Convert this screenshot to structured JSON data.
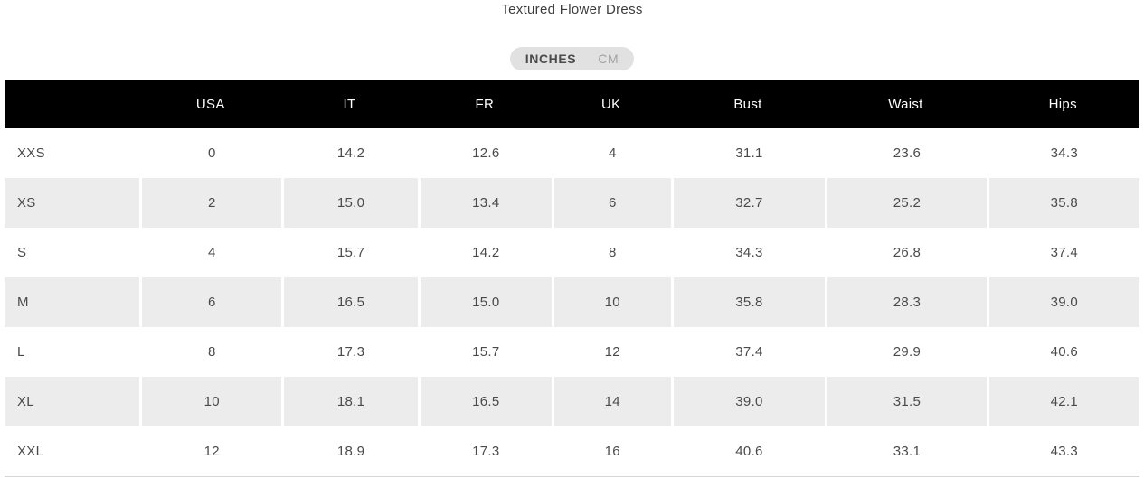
{
  "header": {
    "title": "Textured Flower Dress"
  },
  "unit_toggle": {
    "inches_label": "INCHES",
    "cm_label": "CM",
    "selected": "INCHES"
  },
  "size_table": {
    "columns": [
      "",
      "USA",
      "IT",
      "FR",
      "UK",
      "Bust",
      "Waist",
      "Hips"
    ],
    "rows": [
      [
        "XXS",
        "0",
        "14.2",
        "12.6",
        "4",
        "31.1",
        "23.6",
        "34.3"
      ],
      [
        "XS",
        "2",
        "15.0",
        "13.4",
        "6",
        "32.7",
        "25.2",
        "35.8"
      ],
      [
        "S",
        "4",
        "15.7",
        "14.2",
        "8",
        "34.3",
        "26.8",
        "37.4"
      ],
      [
        "M",
        "6",
        "16.5",
        "15.0",
        "10",
        "35.8",
        "28.3",
        "39.0"
      ],
      [
        "L",
        "8",
        "17.3",
        "15.7",
        "12",
        "37.4",
        "29.9",
        "40.6"
      ],
      [
        "XL",
        "10",
        "18.1",
        "16.5",
        "14",
        "39.0",
        "31.5",
        "42.1"
      ],
      [
        "XXL",
        "12",
        "18.9",
        "17.3",
        "16",
        "40.6",
        "33.1",
        "43.3"
      ]
    ]
  },
  "colors": {
    "header_bg": "#000000",
    "header_text": "#ffffff",
    "stripe_bg": "#ececec",
    "body_text": "#4a4a4a",
    "toggle_bg": "#e1e1e1",
    "toggle_selected_text": "#4a4a4a",
    "toggle_unselected_text": "#a3a3a3",
    "table_bottom_border": "#d6d6d6"
  }
}
